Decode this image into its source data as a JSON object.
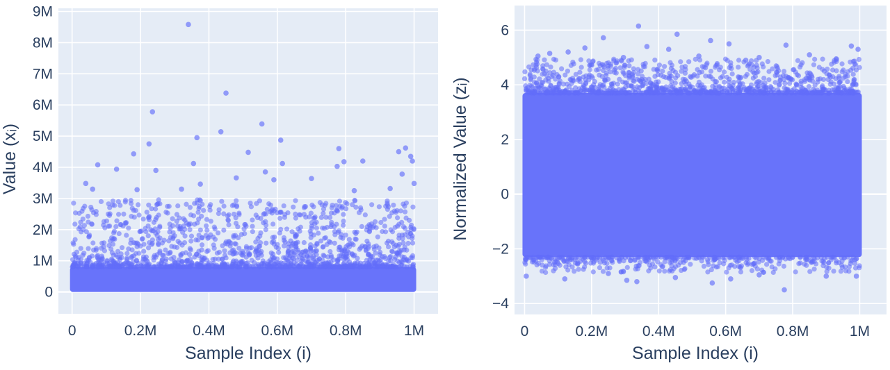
{
  "chart_data": [
    {
      "type": "scatter",
      "xlabel": "Sample Index (i)",
      "ylabel": "Value (xᵢ)",
      "xlim": [
        -40000,
        1070000
      ],
      "ylim": [
        -700000,
        9100000
      ],
      "xticks": [
        {
          "value": 0,
          "label": "0"
        },
        {
          "value": 200000,
          "label": "0.2M"
        },
        {
          "value": 400000,
          "label": "0.4M"
        },
        {
          "value": 600000,
          "label": "0.6M"
        },
        {
          "value": 800000,
          "label": "0.8M"
        },
        {
          "value": 1000000,
          "label": "1M"
        }
      ],
      "yticks": [
        {
          "value": 0,
          "label": "0"
        },
        {
          "value": 1000000,
          "label": "1M"
        },
        {
          "value": 2000000,
          "label": "2M"
        },
        {
          "value": 3000000,
          "label": "3M"
        },
        {
          "value": 4000000,
          "label": "4M"
        },
        {
          "value": 5000000,
          "label": "5M"
        },
        {
          "value": 6000000,
          "label": "6M"
        },
        {
          "value": 7000000,
          "label": "7M"
        },
        {
          "value": 8000000,
          "label": "8M"
        },
        {
          "value": 9000000,
          "label": "9M"
        }
      ],
      "x_range": [
        0,
        1000000
      ],
      "dense_band": [
        0,
        800000
      ],
      "outliers": [
        {
          "x": 340000,
          "y": 8580000
        },
        {
          "x": 450000,
          "y": 6380000
        },
        {
          "x": 235000,
          "y": 5780000
        },
        {
          "x": 555000,
          "y": 5390000
        },
        {
          "x": 435000,
          "y": 5140000
        },
        {
          "x": 610000,
          "y": 4870000
        },
        {
          "x": 365000,
          "y": 4950000
        },
        {
          "x": 225000,
          "y": 4750000
        },
        {
          "x": 975000,
          "y": 4620000
        },
        {
          "x": 780000,
          "y": 4600000
        },
        {
          "x": 955000,
          "y": 4500000
        },
        {
          "x": 515000,
          "y": 4480000
        },
        {
          "x": 180000,
          "y": 4430000
        },
        {
          "x": 990000,
          "y": 4350000
        },
        {
          "x": 995000,
          "y": 4200000
        },
        {
          "x": 850000,
          "y": 4200000
        },
        {
          "x": 795000,
          "y": 4180000
        },
        {
          "x": 355000,
          "y": 4120000
        },
        {
          "x": 615000,
          "y": 4120000
        },
        {
          "x": 75000,
          "y": 4080000
        },
        {
          "x": 775000,
          "y": 4030000
        },
        {
          "x": 130000,
          "y": 3940000
        },
        {
          "x": 245000,
          "y": 3900000
        },
        {
          "x": 565000,
          "y": 3850000
        },
        {
          "x": 965000,
          "y": 3780000
        },
        {
          "x": 480000,
          "y": 3660000
        },
        {
          "x": 700000,
          "y": 3640000
        },
        {
          "x": 590000,
          "y": 3600000
        },
        {
          "x": 40000,
          "y": 3480000
        },
        {
          "x": 1000000,
          "y": 3480000
        },
        {
          "x": 375000,
          "y": 3460000
        },
        {
          "x": 930000,
          "y": 3320000
        },
        {
          "x": 60000,
          "y": 3300000
        },
        {
          "x": 320000,
          "y": 3300000
        },
        {
          "x": 190000,
          "y": 3280000
        },
        {
          "x": 825000,
          "y": 3250000
        }
      ],
      "colors": {
        "marker": "#636efa",
        "plot_bg": "#e5ecf6",
        "grid": "#ffffff",
        "text": "#2a3f5f"
      }
    },
    {
      "type": "scatter",
      "xlabel": "Sample Index (i)",
      "ylabel": "Normalized Value (zᵢ)",
      "xlim": [
        -30000,
        1080000
      ],
      "ylim": [
        -4.4,
        6.9
      ],
      "xticks": [
        {
          "value": 0,
          "label": "0"
        },
        {
          "value": 200000,
          "label": "0.2M"
        },
        {
          "value": 400000,
          "label": "0.4M"
        },
        {
          "value": 600000,
          "label": "0.6M"
        },
        {
          "value": 800000,
          "label": "0.8M"
        },
        {
          "value": 1000000,
          "label": "1M"
        }
      ],
      "yticks": [
        {
          "value": -4,
          "label": "−4"
        },
        {
          "value": -2,
          "label": "−2"
        },
        {
          "value": 0,
          "label": "0"
        },
        {
          "value": 2,
          "label": "2"
        },
        {
          "value": 4,
          "label": "4"
        },
        {
          "value": 6,
          "label": "6"
        }
      ],
      "x_range": [
        0,
        1000000
      ],
      "dense_band": [
        -2.3,
        3.7
      ],
      "outliers": [
        {
          "x": 340000,
          "y": 6.15
        },
        {
          "x": 455000,
          "y": 5.85
        },
        {
          "x": 235000,
          "y": 5.72
        },
        {
          "x": 555000,
          "y": 5.62
        },
        {
          "x": 610000,
          "y": 5.5
        },
        {
          "x": 365000,
          "y": 5.4
        },
        {
          "x": 780000,
          "y": 5.45
        },
        {
          "x": 975000,
          "y": 5.42
        },
        {
          "x": 180000,
          "y": 5.35
        },
        {
          "x": 430000,
          "y": 5.3
        },
        {
          "x": 130000,
          "y": 5.2
        },
        {
          "x": 850000,
          "y": 5.1
        },
        {
          "x": 75000,
          "y": 5.15
        },
        {
          "x": 40000,
          "y": 5.05
        },
        {
          "x": 995000,
          "y": 5.3
        },
        {
          "x": 700000,
          "y": 5.0
        },
        {
          "x": 520000,
          "y": 5.05
        },
        {
          "x": 930000,
          "y": 4.95
        },
        {
          "x": 295000,
          "y": 5.0
        },
        {
          "x": 660000,
          "y": 4.9
        },
        {
          "x": 775000,
          "y": -3.5
        },
        {
          "x": 560000,
          "y": -3.25
        },
        {
          "x": 335000,
          "y": -3.2
        },
        {
          "x": 305000,
          "y": -3.15
        },
        {
          "x": 615000,
          "y": -3.1
        },
        {
          "x": 120000,
          "y": -3.1
        },
        {
          "x": 450000,
          "y": -3.05
        },
        {
          "x": 5000,
          "y": -3.0
        },
        {
          "x": 900000,
          "y": -3.0
        },
        {
          "x": 990000,
          "y": -3.0
        },
        {
          "x": 700000,
          "y": -2.95
        },
        {
          "x": 250000,
          "y": -2.9
        }
      ],
      "colors": {
        "marker": "#636efa",
        "plot_bg": "#e5ecf6",
        "grid": "#ffffff",
        "text": "#2a3f5f"
      }
    }
  ]
}
